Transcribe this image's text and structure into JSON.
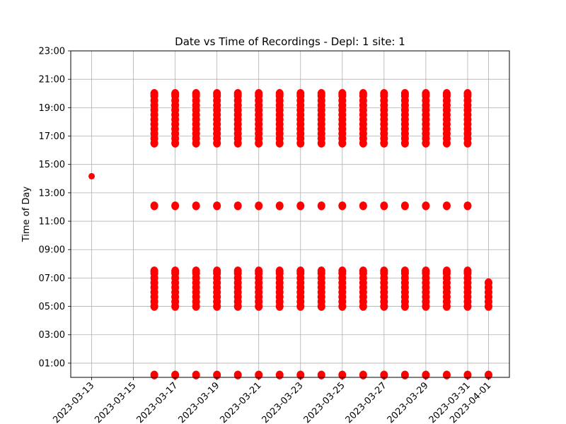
{
  "chart_data": {
    "type": "scatter",
    "title": "Date vs Time of Recordings - Depl: 1 site: 1",
    "xlabel": "",
    "ylabel": "Time of Day",
    "marker_color": "#ff0000",
    "grid_color": "#b0b0b0",
    "grid": true,
    "x_tick_labels": [
      "2023-03-13",
      "2023-03-15",
      "2023-03-17",
      "2023-03-19",
      "2023-03-21",
      "2023-03-23",
      "2023-03-25",
      "2023-03-27",
      "2023-03-29",
      "2023-03-31",
      "2023-04-01"
    ],
    "y_tick_labels": [
      "01:00",
      "03:00",
      "05:00",
      "07:00",
      "09:00",
      "11:00",
      "13:00",
      "15:00",
      "17:00",
      "19:00",
      "21:00",
      "23:00"
    ],
    "xlim": [
      "2023-03-12",
      "2023-04-02"
    ],
    "ylim": [
      "00:00",
      "23:00"
    ],
    "points": [
      {
        "date": "2023-03-13",
        "times": [
          "14:10"
        ]
      },
      {
        "date": "2023-03-16",
        "times": [
          "00:10",
          "05:00",
          "05:20",
          "05:40",
          "06:00",
          "06:20",
          "06:40",
          "07:00",
          "07:20",
          "07:30",
          "12:05",
          "16:30",
          "16:50",
          "17:10",
          "17:30",
          "17:50",
          "18:10",
          "18:30",
          "18:50",
          "19:10",
          "19:30",
          "19:50",
          "20:00"
        ]
      },
      {
        "date": "2023-03-17",
        "times": [
          "00:10",
          "05:00",
          "05:20",
          "05:40",
          "06:00",
          "06:20",
          "06:40",
          "07:00",
          "07:20",
          "07:30",
          "12:05",
          "16:30",
          "16:50",
          "17:10",
          "17:30",
          "17:50",
          "18:10",
          "18:30",
          "18:50",
          "19:10",
          "19:30",
          "19:50",
          "20:00"
        ]
      },
      {
        "date": "2023-03-18",
        "times": [
          "00:10",
          "05:00",
          "05:20",
          "05:40",
          "06:00",
          "06:20",
          "06:40",
          "07:00",
          "07:20",
          "07:30",
          "12:05",
          "16:30",
          "16:50",
          "17:10",
          "17:30",
          "17:50",
          "18:10",
          "18:30",
          "18:50",
          "19:10",
          "19:30",
          "19:50",
          "20:00"
        ]
      },
      {
        "date": "2023-03-19",
        "times": [
          "00:10",
          "05:00",
          "05:20",
          "05:40",
          "06:00",
          "06:20",
          "06:40",
          "07:00",
          "07:20",
          "07:30",
          "12:05",
          "16:30",
          "16:50",
          "17:10",
          "17:30",
          "17:50",
          "18:10",
          "18:30",
          "18:50",
          "19:10",
          "19:30",
          "19:50",
          "20:00"
        ]
      },
      {
        "date": "2023-03-20",
        "times": [
          "00:10",
          "05:00",
          "05:20",
          "05:40",
          "06:00",
          "06:20",
          "06:40",
          "07:00",
          "07:20",
          "07:30",
          "12:05",
          "16:30",
          "16:50",
          "17:10",
          "17:30",
          "17:50",
          "18:10",
          "18:30",
          "18:50",
          "19:10",
          "19:30",
          "19:50",
          "20:00"
        ]
      },
      {
        "date": "2023-03-21",
        "times": [
          "00:10",
          "05:00",
          "05:20",
          "05:40",
          "06:00",
          "06:20",
          "06:40",
          "07:00",
          "07:20",
          "07:30",
          "12:05",
          "16:30",
          "16:50",
          "17:10",
          "17:30",
          "17:50",
          "18:10",
          "18:30",
          "18:50",
          "19:10",
          "19:30",
          "19:50",
          "20:00"
        ]
      },
      {
        "date": "2023-03-22",
        "times": [
          "00:10",
          "05:00",
          "05:20",
          "05:40",
          "06:00",
          "06:20",
          "06:40",
          "07:00",
          "07:20",
          "07:30",
          "12:05",
          "16:30",
          "16:50",
          "17:10",
          "17:30",
          "17:50",
          "18:10",
          "18:30",
          "18:50",
          "19:10",
          "19:30",
          "19:50",
          "20:00"
        ]
      },
      {
        "date": "2023-03-23",
        "times": [
          "00:10",
          "05:00",
          "05:20",
          "05:40",
          "06:00",
          "06:20",
          "06:40",
          "07:00",
          "07:20",
          "07:30",
          "12:05",
          "16:30",
          "16:50",
          "17:10",
          "17:30",
          "17:50",
          "18:10",
          "18:30",
          "18:50",
          "19:10",
          "19:30",
          "19:50",
          "20:00"
        ]
      },
      {
        "date": "2023-03-24",
        "times": [
          "00:10",
          "05:00",
          "05:20",
          "05:40",
          "06:00",
          "06:20",
          "06:40",
          "07:00",
          "07:20",
          "07:30",
          "12:05",
          "16:30",
          "16:50",
          "17:10",
          "17:30",
          "17:50",
          "18:10",
          "18:30",
          "18:50",
          "19:10",
          "19:30",
          "19:50",
          "20:00"
        ]
      },
      {
        "date": "2023-03-25",
        "times": [
          "00:10",
          "05:00",
          "05:20",
          "05:40",
          "06:00",
          "06:20",
          "06:40",
          "07:00",
          "07:20",
          "07:30",
          "12:05",
          "16:30",
          "16:50",
          "17:10",
          "17:30",
          "17:50",
          "18:10",
          "18:30",
          "18:50",
          "19:10",
          "19:30",
          "19:50",
          "20:00"
        ]
      },
      {
        "date": "2023-03-26",
        "times": [
          "00:10",
          "05:00",
          "05:20",
          "05:40",
          "06:00",
          "06:20",
          "06:40",
          "07:00",
          "07:20",
          "07:30",
          "12:05",
          "16:30",
          "16:50",
          "17:10",
          "17:30",
          "17:50",
          "18:10",
          "18:30",
          "18:50",
          "19:10",
          "19:30",
          "19:50",
          "20:00"
        ]
      },
      {
        "date": "2023-03-27",
        "times": [
          "00:10",
          "05:00",
          "05:20",
          "05:40",
          "06:00",
          "06:20",
          "06:40",
          "07:00",
          "07:20",
          "07:30",
          "12:05",
          "16:30",
          "16:50",
          "17:10",
          "17:30",
          "17:50",
          "18:10",
          "18:30",
          "18:50",
          "19:10",
          "19:30",
          "19:50",
          "20:00"
        ]
      },
      {
        "date": "2023-03-28",
        "times": [
          "00:10",
          "05:00",
          "05:20",
          "05:40",
          "06:00",
          "06:20",
          "06:40",
          "07:00",
          "07:20",
          "07:30",
          "12:05",
          "16:30",
          "16:50",
          "17:10",
          "17:30",
          "17:50",
          "18:10",
          "18:30",
          "18:50",
          "19:10",
          "19:30",
          "19:50",
          "20:00"
        ]
      },
      {
        "date": "2023-03-29",
        "times": [
          "00:10",
          "05:00",
          "05:20",
          "05:40",
          "06:00",
          "06:20",
          "06:40",
          "07:00",
          "07:20",
          "07:30",
          "12:05",
          "16:30",
          "16:50",
          "17:10",
          "17:30",
          "17:50",
          "18:10",
          "18:30",
          "18:50",
          "19:10",
          "19:30",
          "19:50",
          "20:00"
        ]
      },
      {
        "date": "2023-03-30",
        "times": [
          "00:10",
          "05:00",
          "05:20",
          "05:40",
          "06:00",
          "06:20",
          "06:40",
          "07:00",
          "07:20",
          "07:30",
          "12:05",
          "16:30",
          "16:50",
          "17:10",
          "17:30",
          "17:50",
          "18:10",
          "18:30",
          "18:50",
          "19:10",
          "19:30",
          "19:50",
          "20:00"
        ]
      },
      {
        "date": "2023-03-31",
        "times": [
          "00:10",
          "05:00",
          "05:20",
          "05:40",
          "06:00",
          "06:20",
          "06:40",
          "07:00",
          "07:20",
          "07:30",
          "12:05",
          "16:30",
          "16:50",
          "17:10",
          "17:30",
          "17:50",
          "18:10",
          "18:30",
          "18:50",
          "19:10",
          "19:30",
          "19:50",
          "20:00"
        ]
      },
      {
        "date": "2023-04-01",
        "times": [
          "00:10",
          "05:00",
          "05:20",
          "05:40",
          "06:00",
          "06:20",
          "06:40"
        ]
      }
    ]
  }
}
